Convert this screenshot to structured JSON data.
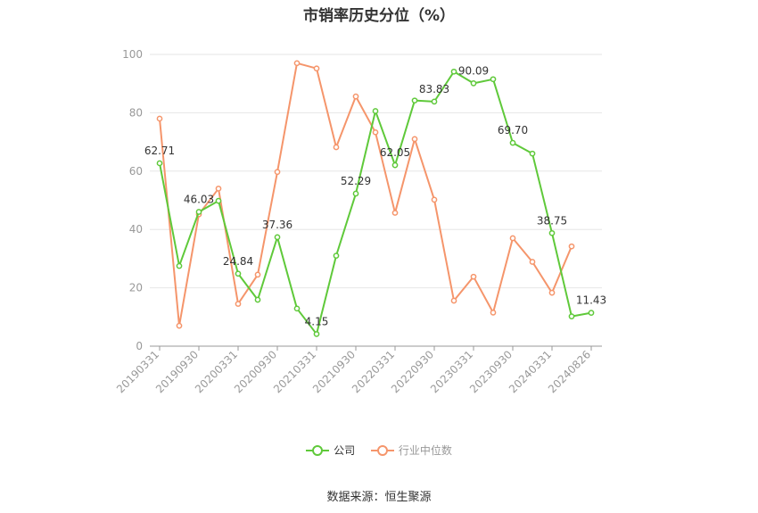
{
  "chart_data": {
    "type": "line",
    "title": "市销率历史分位（%）",
    "ylim": [
      0,
      100
    ],
    "yticks": [
      0,
      20,
      40,
      60,
      80,
      100
    ],
    "xtick_labels": [
      "20190331",
      "20190930",
      "20200331",
      "20200930",
      "20210331",
      "20210930",
      "20220331",
      "20220930",
      "20230331",
      "20230930",
      "20240331",
      "20240826"
    ],
    "x": [
      "20190331",
      "20190630",
      "20190930",
      "20191231",
      "20200331",
      "20200630",
      "20200930",
      "20201231",
      "20210331",
      "20210630",
      "20210930",
      "20211231",
      "20220331",
      "20220630",
      "20220930",
      "20221231",
      "20230331",
      "20230630",
      "20230930",
      "20231231",
      "20240331",
      "20240630",
      "20240826"
    ],
    "grid": true,
    "legend_position": "bottom",
    "series": [
      {
        "name": "公司",
        "color": "#5fc93a",
        "values": [
          62.71,
          27.5,
          46.03,
          49.8,
          24.84,
          15.9,
          37.36,
          12.9,
          4.15,
          31.0,
          52.29,
          80.6,
          62.05,
          84.2,
          83.83,
          94.1,
          90.09,
          91.5,
          69.7,
          66.0,
          38.75,
          10.2,
          11.43
        ],
        "labels": {
          "0": "62.71",
          "2": "46.03",
          "4": "24.84",
          "6": "37.36",
          "8": "4.15",
          "10": "52.29",
          "12": "62.05",
          "14": "83.83",
          "16": "90.09",
          "18": "69.70",
          "20": "38.75",
          "22": "11.43"
        }
      },
      {
        "name": "行业中位数",
        "color": "#f5956b",
        "values": [
          78.0,
          7.0,
          45.2,
          54.0,
          14.5,
          24.5,
          59.7,
          97.0,
          95.2,
          68.2,
          85.6,
          73.3,
          45.7,
          71.0,
          50.2,
          15.6,
          23.8,
          11.5,
          37.0,
          28.9,
          18.3,
          34.2,
          null
        ]
      }
    ]
  },
  "source_text": "数据来源：恒生聚源"
}
